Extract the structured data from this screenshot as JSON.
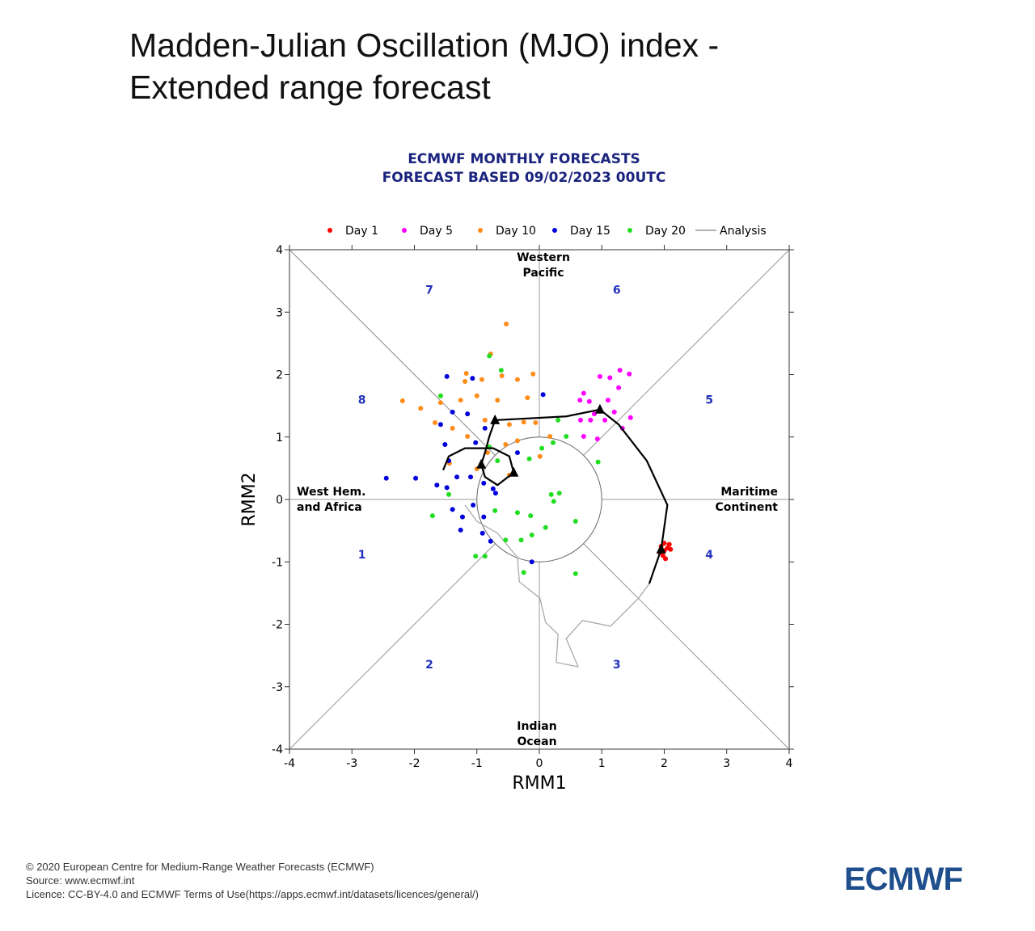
{
  "header": {
    "title": "Madden-Julian Oscillation (MJO) index - Extended range forecast"
  },
  "chart_data": {
    "type": "scatter",
    "title": [
      "ECMWF MONTHLY FORECASTS",
      "FORECAST  BASED 09/02/2023 00UTC"
    ],
    "x_label": "RMM1",
    "y_label": "RMM2",
    "xlim": [
      -4,
      4
    ],
    "ylim": [
      -4,
      4
    ],
    "xticks": [
      -4,
      -3,
      -2,
      -1,
      0,
      1,
      2,
      3,
      4
    ],
    "yticks": [
      -4,
      -3,
      -2,
      -1,
      0,
      1,
      2,
      3,
      4
    ],
    "phase_labels": [
      "1",
      "2",
      "3",
      "4",
      "5",
      "6",
      "7",
      "8"
    ],
    "region_labels": [
      [
        "West Hem.",
        "and Africa"
      ],
      [
        "Indian",
        "Ocean"
      ],
      [
        "Maritime",
        "Continent"
      ],
      [
        "Western",
        "Pacific"
      ]
    ],
    "series": [
      {
        "name": "Day 1",
        "color": "#ff0000",
        "x": [
          1.95,
          2.0,
          2.05,
          2.1,
          1.98,
          2.02,
          1.93,
          2.08,
          2.0
        ],
        "y": [
          -0.75,
          -0.7,
          -0.78,
          -0.8,
          -0.9,
          -0.95,
          -0.85,
          -0.72,
          -0.82
        ]
      },
      {
        "name": "Day 5",
        "color": "#ff00ff",
        "x": [
          0.71,
          0.8,
          0.97,
          1.13,
          1.29,
          1.44,
          0.65,
          0.88,
          1.05,
          1.2,
          1.33,
          1.46,
          0.71,
          0.93,
          1.1,
          1.27,
          0.82,
          0.66
        ],
        "y": [
          1.7,
          1.57,
          1.97,
          1.95,
          2.07,
          2.01,
          1.59,
          1.37,
          1.27,
          1.4,
          1.14,
          1.31,
          1.01,
          0.97,
          1.59,
          1.79,
          1.27,
          1.27
        ]
      },
      {
        "name": "Day 10",
        "color": "#ff8c1a",
        "x": [
          -0.53,
          -0.78,
          -1.17,
          -0.92,
          -0.6,
          -0.35,
          -0.1,
          -2.19,
          -1.9,
          -1.58,
          -1.26,
          -1.0,
          -0.67,
          -0.19,
          -1.67,
          -1.39,
          -1.15,
          -0.87,
          -0.48,
          -0.25,
          -0.06,
          -0.54,
          -0.35,
          0.01,
          -1.44,
          -1.0,
          -0.48,
          -0.83,
          0.17,
          -1.19
        ],
        "y": [
          2.81,
          2.33,
          2.02,
          1.92,
          1.98,
          1.92,
          2.01,
          1.58,
          1.46,
          1.55,
          1.59,
          1.66,
          1.59,
          1.63,
          1.23,
          1.14,
          1.01,
          1.27,
          1.2,
          1.24,
          1.23,
          0.88,
          0.94,
          0.69,
          0.58,
          0.49,
          0.39,
          0.75,
          1.01,
          1.89
        ]
      },
      {
        "name": "Day 15",
        "color": "#0000dd",
        "x": [
          -1.48,
          0.06,
          -1.07,
          -1.15,
          -1.39,
          -1.58,
          -1.51,
          -2.45,
          -1.98,
          -1.64,
          -1.48,
          -1.32,
          -1.1,
          -0.89,
          -0.74,
          -1.39,
          -1.23,
          -1.06,
          -0.89,
          -1.26,
          -0.91,
          -0.78,
          -0.12,
          -0.87,
          -1.02,
          -1.45,
          -0.35,
          -0.7
        ],
        "y": [
          1.97,
          1.68,
          1.94,
          1.37,
          1.4,
          1.2,
          0.88,
          0.34,
          0.34,
          0.23,
          0.19,
          0.36,
          0.36,
          0.26,
          0.17,
          -0.16,
          -0.28,
          -0.09,
          -0.28,
          -0.49,
          -0.54,
          -0.67,
          -1.0,
          1.14,
          0.91,
          0.62,
          0.75,
          0.1
        ]
      },
      {
        "name": "Day 20",
        "color": "#22dd22",
        "x": [
          -0.8,
          -0.61,
          -1.58,
          0.3,
          0.43,
          0.22,
          0.04,
          0.94,
          -0.8,
          -0.93,
          -0.67,
          -0.16,
          0.19,
          0.32,
          0.23,
          -1.45,
          -1.71,
          -0.71,
          -0.35,
          -0.14,
          0.58,
          -0.54,
          -0.29,
          -0.12,
          -1.02,
          -0.25,
          0.58,
          0.1,
          -0.87
        ],
        "y": [
          2.3,
          2.07,
          1.66,
          1.27,
          1.01,
          0.91,
          0.82,
          0.6,
          0.84,
          0.56,
          0.62,
          0.65,
          0.08,
          0.1,
          -0.03,
          0.08,
          -0.26,
          -0.18,
          -0.21,
          -0.26,
          -0.35,
          -0.65,
          -0.65,
          -0.57,
          -0.91,
          -1.17,
          -1.19,
          -0.45,
          -0.91
        ]
      }
    ],
    "analysis": {
      "name": "Analysis",
      "color": "#aaaaaa",
      "x": [
        1.76,
        1.59,
        1.14,
        0.69,
        0.43,
        0.62,
        0.27,
        0.3,
        0.1,
        0.01,
        -0.32,
        -0.35,
        -0.67,
        -1.0,
        -1.19
      ],
      "y": [
        -1.35,
        -1.58,
        -2.03,
        -1.94,
        -2.23,
        -2.68,
        -2.61,
        -2.16,
        -1.97,
        -1.58,
        -1.32,
        -0.93,
        -0.54,
        -0.35,
        -0.09
      ]
    },
    "mean_path": {
      "color": "#000000",
      "x": [
        1.76,
        1.95,
        2.05,
        1.72,
        1.27,
        0.97,
        0.43,
        -0.71,
        -0.8,
        -0.87,
        -0.93,
        -0.87,
        -0.67,
        -0.41,
        -0.48,
        -0.74,
        -1.19,
        -1.45,
        -1.54
      ],
      "y": [
        -1.35,
        -0.8,
        -0.09,
        0.62,
        1.2,
        1.44,
        1.33,
        1.27,
        1.01,
        0.75,
        0.56,
        0.36,
        0.23,
        0.43,
        0.69,
        0.82,
        0.82,
        0.69,
        0.47
      ]
    },
    "mean_markers": {
      "x": [
        1.95,
        0.97,
        -0.71,
        -0.93,
        -0.41
      ],
      "y": [
        -0.8,
        1.44,
        1.27,
        0.56,
        0.43
      ]
    }
  },
  "footer": {
    "lines": [
      "© 2020 European Centre for Medium-Range Weather Forecasts (ECMWF)",
      "Source: www.ecmwf.int",
      "Licence: CC-BY-4.0 and ECMWF Terms of Use(https://apps.ecmwf.int/datasets/licences/general/)"
    ],
    "logo": "ECMWF"
  }
}
